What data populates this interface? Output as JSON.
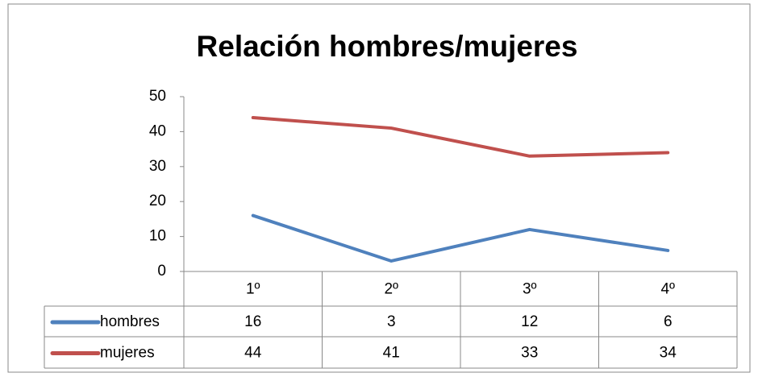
{
  "chart_data": {
    "type": "line",
    "title": "Relación hombres/mujeres",
    "categories": [
      "1º",
      "2º",
      "3º",
      "4º"
    ],
    "series": [
      {
        "name": "hombres",
        "color": "#4f81bd",
        "values": [
          16,
          3,
          12,
          6
        ]
      },
      {
        "name": "mujeres",
        "color": "#c0504d",
        "values": [
          44,
          41,
          33,
          34
        ]
      }
    ],
    "ylim": [
      0,
      50
    ],
    "yticks": [
      0,
      10,
      20,
      30,
      40,
      50
    ],
    "grid": false
  }
}
